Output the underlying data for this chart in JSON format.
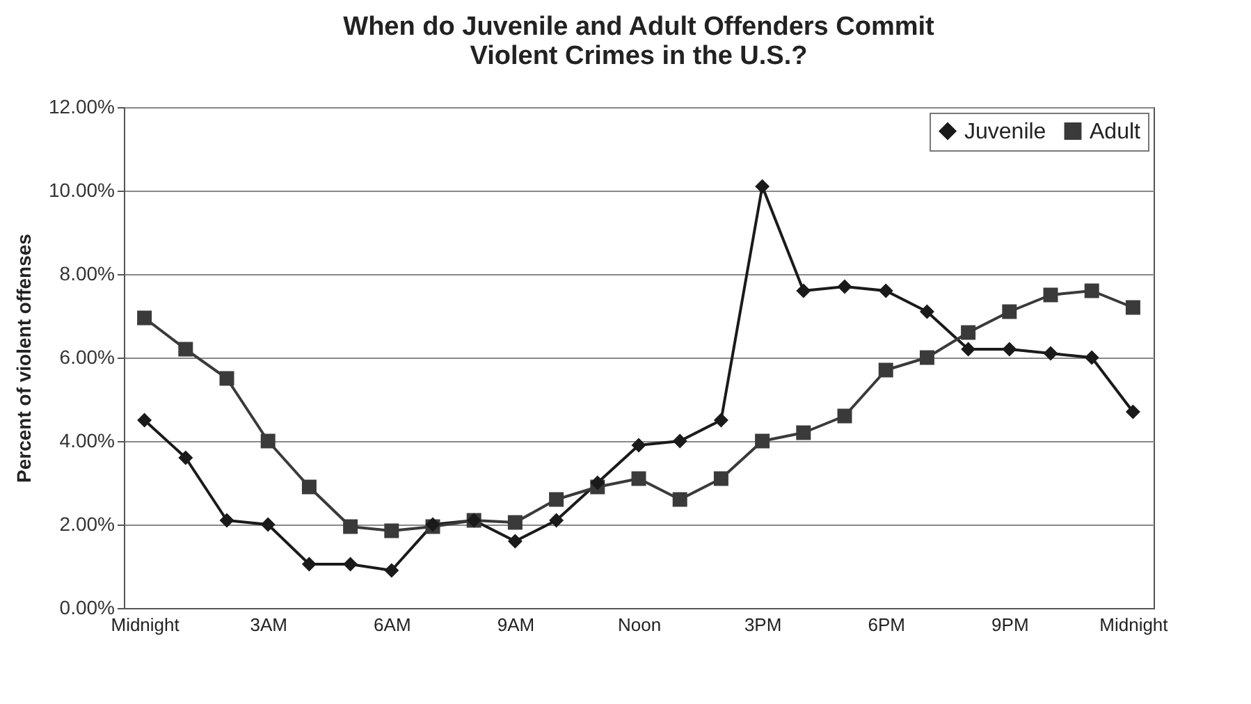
{
  "chart_data": {
    "type": "line",
    "title": "When do Juvenile and Adult Offenders Commit Violent Crimes in the U.S.?",
    "ylabel": "Percent of violent offenses",
    "categories": [
      "Midnight",
      null,
      null,
      "3AM",
      null,
      null,
      "6AM",
      null,
      null,
      "9AM",
      null,
      null,
      "Noon",
      null,
      null,
      "3PM",
      null,
      null,
      "6PM",
      null,
      null,
      "9PM",
      null,
      null,
      "Midnight"
    ],
    "series": [
      {
        "name": "Juvenile",
        "color": "#1a1a1a",
        "marker": "diamond",
        "values": [
          4.5,
          3.6,
          2.1,
          2.0,
          1.05,
          1.05,
          0.9,
          2.0,
          2.1,
          1.6,
          2.1,
          3.0,
          3.9,
          4.0,
          4.5,
          10.1,
          7.6,
          7.7,
          7.6,
          7.1,
          6.2,
          6.2,
          6.1,
          6.0,
          4.7
        ]
      },
      {
        "name": "Adult",
        "color": "#3a3a3a",
        "marker": "square",
        "values": [
          6.95,
          6.2,
          5.5,
          4.0,
          2.9,
          1.95,
          1.85,
          1.95,
          2.1,
          2.05,
          2.6,
          2.9,
          3.1,
          2.6,
          3.1,
          4.0,
          4.2,
          4.6,
          5.7,
          6.0,
          6.6,
          7.1,
          7.5,
          7.6,
          7.2
        ]
      }
    ],
    "ylim": [
      0,
      12
    ],
    "yticks": [
      {
        "value": 0,
        "label": "0.00%"
      },
      {
        "value": 2,
        "label": "2.00%"
      },
      {
        "value": 4,
        "label": "4.00%"
      },
      {
        "value": 6,
        "label": "6.00%"
      },
      {
        "value": 8,
        "label": "8.00%"
      },
      {
        "value": 10,
        "label": "10.00%"
      },
      {
        "value": 12,
        "label": "12.00%"
      }
    ],
    "grid": "y",
    "legend": "top right",
    "line_style": "solid"
  }
}
